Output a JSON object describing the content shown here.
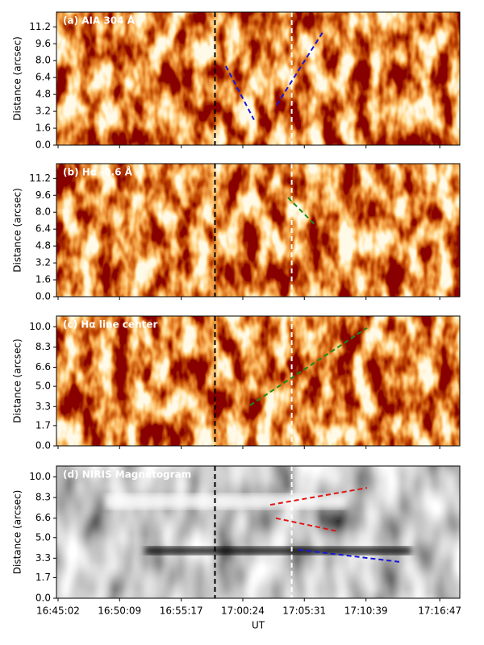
{
  "chart_data": [
    {
      "type": "image",
      "title": "(a) AIA 304 Å",
      "colormap": "hot",
      "ylabel": "Distance (arcsec)",
      "ylim": [
        0,
        12.6
      ],
      "yticks": [
        {
          "value": 0,
          "label": "0.0"
        },
        1.6,
        3.2,
        4.8,
        6.4,
        {
          "value": 8,
          "label": "8.0"
        },
        9.6,
        11.2
      ],
      "vlines": [
        {
          "x": 61085,
          "color": "black"
        },
        {
          "x": 61468,
          "color": "white"
        }
      ],
      "tracks": [
        {
          "x": [
            61139,
            61280
          ],
          "y": [
            7.5,
            2.4
          ],
          "color": "blue"
        },
        {
          "x": [
            61393,
            61623
          ],
          "y": [
            3.8,
            10.7
          ],
          "color": "blue"
        }
      ]
    },
    {
      "type": "image",
      "title": "(b) Hα -0.6 Å",
      "colormap": "hot",
      "ylabel": "Distance (arcsec)",
      "ylim": [
        0,
        12.6
      ],
      "yticks": [
        {
          "value": 0,
          "label": "0.0"
        },
        1.6,
        3.2,
        4.8,
        6.4,
        {
          "value": 8,
          "label": "8.0"
        },
        9.6,
        11.2
      ],
      "vlines": [
        {
          "x": 61085,
          "color": "black"
        },
        {
          "x": 61468,
          "color": "white"
        }
      ],
      "tracks": [
        {
          "x": [
            61449,
            61590
          ],
          "y": [
            9.4,
            6.7
          ],
          "color": "green"
        }
      ]
    },
    {
      "type": "image",
      "title": "(c) Hα line center",
      "colormap": "hot",
      "ylabel": "Distance (arcsec)",
      "ylim": [
        0,
        10.9
      ],
      "yticks": [
        {
          "value": 0,
          "label": "0.0"
        },
        1.7,
        3.3,
        {
          "value": 5,
          "label": "5.0"
        },
        6.6,
        8.3,
        {
          "value": 10,
          "label": "10.0"
        }
      ],
      "vlines": [
        {
          "x": 61085,
          "color": "black"
        },
        {
          "x": 61468,
          "color": "white"
        }
      ],
      "tracks": [
        {
          "x": [
            61260,
            61844
          ],
          "y": [
            3.4,
            9.9
          ],
          "color": "green"
        }
      ]
    },
    {
      "type": "image",
      "title": "(d) NIRIS Magnetogram",
      "colormap": "gray",
      "ylabel": "Distance (arcsec)",
      "xlabel": "UT",
      "xlim": [
        60294,
        62307
      ],
      "xticks": [
        {
          "value": 60302,
          "label": "16:45:02"
        },
        {
          "value": 60609,
          "label": "16:50:09"
        },
        {
          "value": 60917,
          "label": "16:55:17"
        },
        {
          "value": 61224,
          "label": "17:00:24"
        },
        {
          "value": 61531,
          "label": "17:05:31"
        },
        {
          "value": 61839,
          "label": "17:10:39"
        },
        {
          "value": 62207,
          "label": "17:16:47"
        }
      ],
      "ylim": [
        0,
        10.9
      ],
      "yticks": [
        {
          "value": 0,
          "label": "0.0"
        },
        1.7,
        3.3,
        {
          "value": 5,
          "label": "5.0"
        },
        6.6,
        8.3,
        {
          "value": 10,
          "label": "10.0"
        }
      ],
      "vlines": [
        {
          "x": 61085,
          "color": "black"
        },
        {
          "x": 61468,
          "color": "white"
        }
      ],
      "tracks": [
        {
          "x": [
            61361,
            61844
          ],
          "y": [
            7.7,
            9.1
          ],
          "color": "red"
        },
        {
          "x": [
            61389,
            61703
          ],
          "y": [
            6.6,
            5.5
          ],
          "color": "red"
        },
        {
          "x": [
            61502,
            62005
          ],
          "y": [
            4.0,
            3.0
          ],
          "color": "blue"
        }
      ]
    }
  ]
}
